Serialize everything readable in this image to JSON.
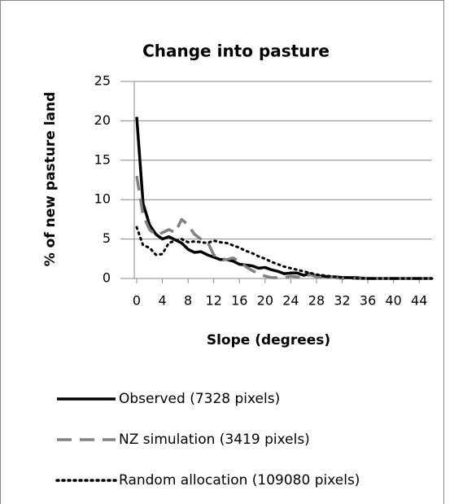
{
  "chart_data": {
    "type": "line",
    "title": "Change into pasture",
    "xlabel": "Slope (degrees)",
    "ylabel": "% of new pasture land",
    "x": [
      0,
      1,
      2,
      3,
      4,
      5,
      6,
      7,
      8,
      9,
      10,
      11,
      12,
      13,
      14,
      15,
      16,
      17,
      18,
      19,
      20,
      21,
      22,
      23,
      24,
      25,
      26,
      27,
      28,
      29,
      30,
      31,
      32,
      33,
      34,
      35,
      36,
      37,
      38,
      39,
      40,
      41,
      42,
      43,
      44,
      45,
      46
    ],
    "series": [
      {
        "name": "Observed (7328 pixels)",
        "color": "#000000",
        "style": "solid",
        "values": [
          20.5,
          9.5,
          6.8,
          5.6,
          5.0,
          5.3,
          4.9,
          4.5,
          3.7,
          3.3,
          3.4,
          3.0,
          2.7,
          2.4,
          2.4,
          2.2,
          1.8,
          1.7,
          1.6,
          1.3,
          1.4,
          1.1,
          0.9,
          0.6,
          0.7,
          0.7,
          0.4,
          0.6,
          0.3,
          0.3,
          0.2,
          0.2,
          0.1,
          0.1,
          0.1,
          0.05,
          0,
          0,
          0,
          0,
          0,
          0,
          0,
          0,
          0,
          0,
          0
        ]
      },
      {
        "name": "NZ simulation (3419 pixels)",
        "color": "#808080",
        "style": "dashed",
        "values": [
          13,
          8,
          6.2,
          5.5,
          5.8,
          6.2,
          5.8,
          7.5,
          6.8,
          5.6,
          5.0,
          4.7,
          3.0,
          2.5,
          2.4,
          2.6,
          2.2,
          1.5,
          1.0,
          0.6,
          0.3,
          0.1,
          0.1,
          0.1,
          0.3,
          0.2,
          0.1,
          0.5,
          0.2,
          0.1,
          0.2,
          0.1,
          0,
          0,
          0,
          0,
          0,
          0,
          0,
          0,
          0,
          0,
          0,
          0,
          0,
          0,
          0
        ]
      },
      {
        "name": "Random allocation (109080 pixels)",
        "color": "#000000",
        "style": "dotted",
        "values": [
          6.5,
          4.2,
          3.9,
          3.0,
          3.1,
          4.5,
          4.8,
          5.0,
          4.6,
          4.7,
          4.6,
          4.5,
          4.8,
          4.6,
          4.5,
          4.2,
          3.9,
          3.5,
          3.2,
          2.8,
          2.5,
          2.1,
          1.8,
          1.5,
          1.3,
          1.1,
          0.9,
          0.7,
          0.5,
          0.4,
          0.3,
          0.2,
          0.15,
          0.1,
          0.05,
          0,
          0,
          0,
          0,
          0,
          0,
          0,
          0,
          0,
          0,
          0,
          0
        ]
      }
    ],
    "xlim": [
      0,
      46
    ],
    "xticks": [
      0,
      4,
      8,
      12,
      16,
      20,
      24,
      28,
      32,
      36,
      40,
      44
    ],
    "ylim": [
      0,
      25
    ],
    "yticks": [
      0,
      5,
      10,
      15,
      20,
      25
    ],
    "grid": true,
    "legend": "bottom"
  }
}
